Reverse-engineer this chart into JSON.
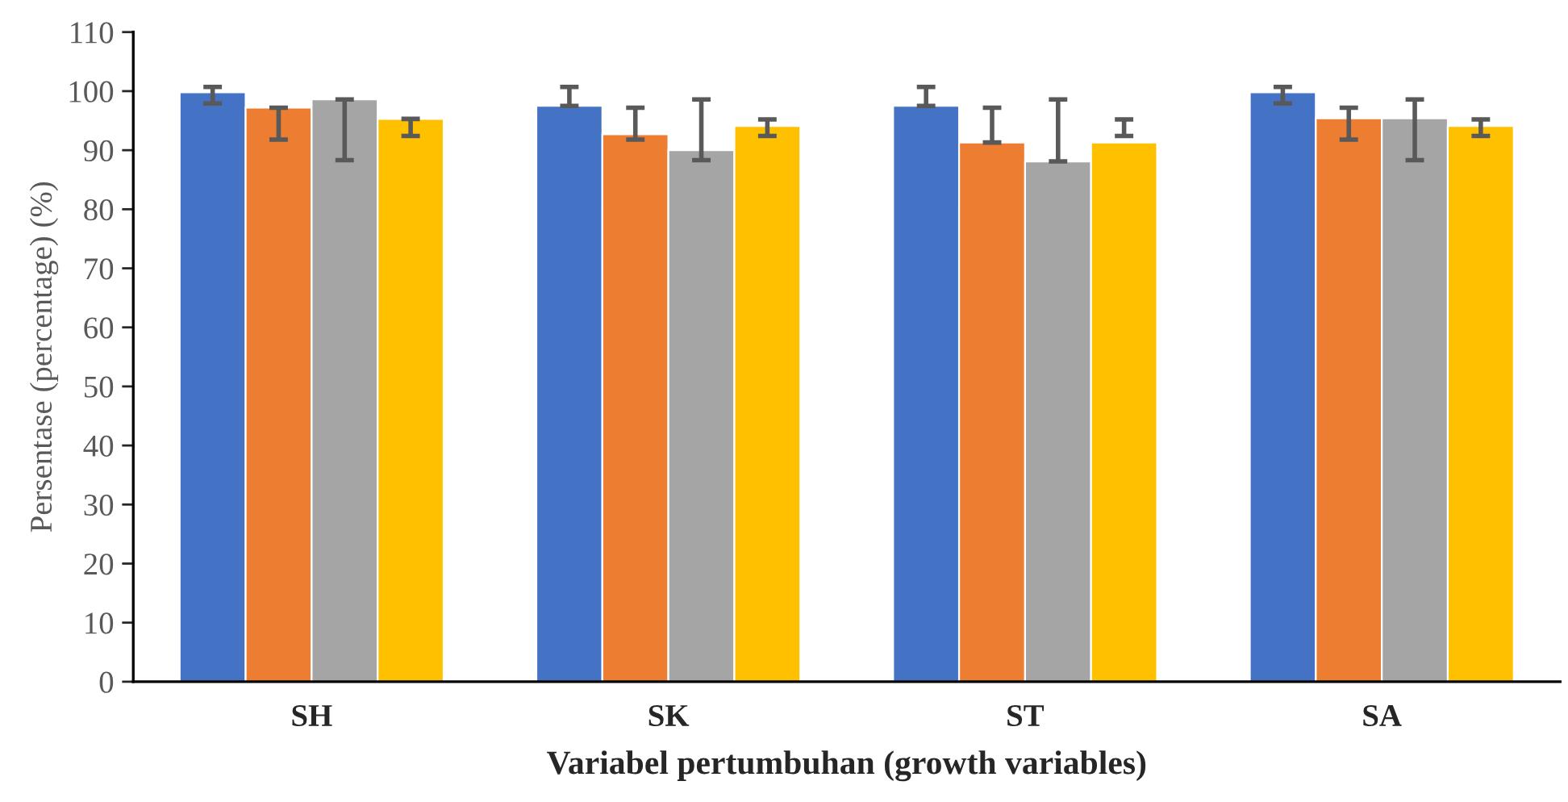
{
  "chart_data": {
    "type": "bar",
    "xlabel": "Variabel pertumbuhan (growth variables)",
    "ylabel": "Persentase (percentage) (%)",
    "categories": [
      "SH",
      "SK",
      "ST",
      "SA"
    ],
    "series": [
      {
        "color": "#4472c4",
        "values": [
          99.8,
          97.5,
          97.5,
          99.8
        ],
        "errors": [
          [
            97.9,
            100.7
          ],
          [
            97.5,
            100.7
          ],
          [
            97.5,
            100.7
          ],
          [
            97.9,
            100.7
          ]
        ]
      },
      {
        "color": "#ed7d31",
        "values": [
          97.2,
          92.7,
          91.3,
          95.4
        ],
        "errors": [
          [
            91.8,
            97.2
          ],
          [
            91.8,
            97.2
          ],
          [
            91.3,
            97.2
          ],
          [
            91.8,
            97.2
          ]
        ]
      },
      {
        "color": "#a5a5a5",
        "values": [
          98.6,
          90.0,
          88.1,
          95.4
        ],
        "errors": [
          [
            88.3,
            98.6
          ],
          [
            88.3,
            98.6
          ],
          [
            88.1,
            98.6
          ],
          [
            88.3,
            98.6
          ]
        ]
      },
      {
        "color": "#ffc000",
        "values": [
          95.3,
          94.1,
          91.3,
          94.1
        ],
        "errors": [
          [
            92.4,
            95.3
          ],
          [
            92.4,
            95.2
          ],
          [
            92.4,
            95.2
          ],
          [
            92.4,
            95.2
          ]
        ]
      }
    ],
    "ylim": [
      0,
      110
    ],
    "yticks": [
      0,
      10,
      20,
      30,
      40,
      50,
      60,
      70,
      80,
      90,
      100,
      110
    ],
    "grid": false
  }
}
